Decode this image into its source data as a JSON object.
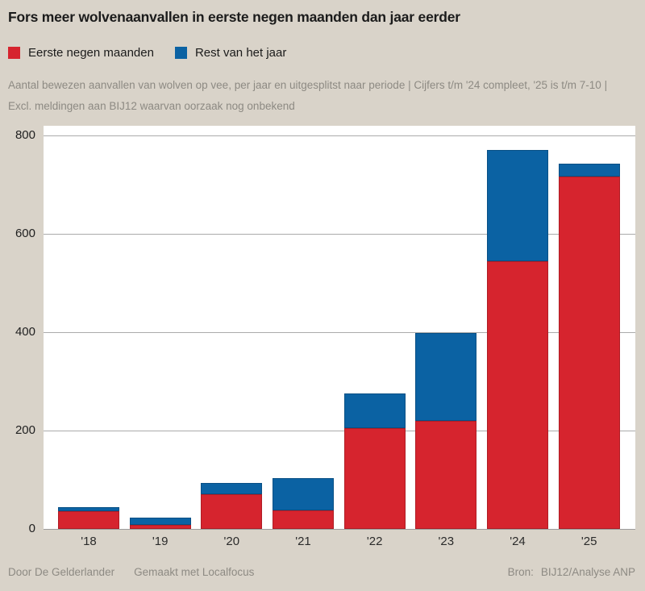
{
  "header": {
    "title": "Fors meer wolvenaanvallen in eerste negen maanden dan jaar eerder"
  },
  "legend": [
    {
      "label": "Eerste negen maanden",
      "color": "#d6242e"
    },
    {
      "label": "Rest van het jaar",
      "color": "#0b62a3"
    }
  ],
  "subtitle": "Aantal bewezen aanvallen van wolven op vee, per jaar en uitgesplitst naar periode | Cijfers t/m '24 compleet, '25 is t/m 7-10 | Excl. meldingen aan BIJ12 waarvan oorzaak nog onbekend",
  "chart_data": {
    "type": "bar",
    "stacked": true,
    "title": "Fors meer wolvenaanvallen in eerste negen maanden dan jaar eerder",
    "categories": [
      "'18",
      "'19",
      "'20",
      "'21",
      "'22",
      "'23",
      "'24",
      "'25"
    ],
    "series": [
      {
        "name": "Eerste negen maanden",
        "color": "#d6242e",
        "values": [
          36,
          9,
          70,
          37,
          205,
          220,
          545,
          717
        ]
      },
      {
        "name": "Rest van het jaar",
        "color": "#0b62a3",
        "values": [
          9,
          14,
          23,
          66,
          70,
          178,
          226,
          26
        ]
      }
    ],
    "totals": [
      45,
      23,
      93,
      103,
      275,
      398,
      771,
      743
    ],
    "xlabel": "",
    "ylabel": "",
    "ylim": [
      0,
      800
    ],
    "yticks": [
      0,
      200,
      400,
      600,
      800
    ],
    "grid": true,
    "legend_position": "top",
    "plot_background": "#ffffff",
    "page_background": "#d9d3c9"
  },
  "footer": {
    "credit": "Door De Gelderlander",
    "made_with": "Gemaakt met Localfocus",
    "source_label": "Bron:",
    "source": "BIJ12/Analyse ANP"
  }
}
